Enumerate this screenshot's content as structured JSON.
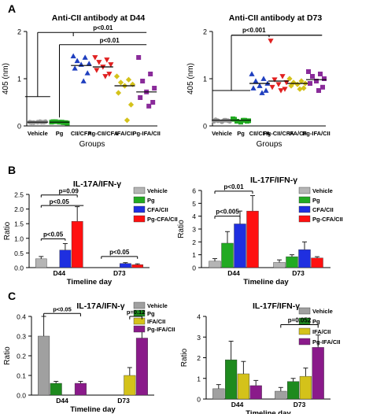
{
  "panel_labels": [
    "A",
    "B",
    "C"
  ],
  "chart_data": [
    {
      "type": "scatter",
      "panel": "A",
      "title": "Anti-CII antibody at D44",
      "ylabel": "405 (nm)",
      "xlabel": "Groups",
      "ylim": [
        0,
        2
      ],
      "yticks": [
        "0",
        "1",
        "2"
      ],
      "categories": [
        "Vehicle",
        "Pg",
        "CII/CFA",
        "Pg-CII/CFA",
        "IFA/CII",
        "Pg-IFA/CII"
      ],
      "colors": [
        "#999999",
        "#22aa22",
        "#1f3fbf",
        "#e02020",
        "#d4c21a",
        "#8a2b9a"
      ],
      "markers": [
        "circle",
        "square",
        "triangle",
        "triangle-down",
        "diamond",
        "square"
      ],
      "points": [
        [
          0.08,
          0.08,
          0.07,
          0.09,
          0.08,
          0.07,
          0.08,
          0.09
        ],
        [
          0.08,
          0.07,
          0.09,
          0.06,
          0.08,
          0.09,
          0.07,
          0.08
        ],
        [
          1.48,
          1.45,
          1.38,
          1.32,
          1.3,
          1.22,
          1.12,
          0.95
        ],
        [
          1.45,
          1.4,
          1.35,
          1.3,
          1.25,
          1.18,
          1.1,
          1.05
        ],
        [
          1.05,
          0.98,
          0.92,
          0.88,
          0.85,
          0.7,
          0.45,
          0.12
        ],
        [
          1.45,
          1.1,
          0.95,
          0.8,
          0.72,
          0.6,
          0.5,
          0.42
        ]
      ],
      "medians": [
        0.08,
        0.08,
        1.28,
        1.25,
        0.85,
        0.72
      ],
      "annotations": [
        "p<0.01",
        "p<0.01"
      ]
    },
    {
      "type": "scatter",
      "panel": "A",
      "title": "Anti-CII antibody at D73",
      "ylabel": "405 (nm)",
      "xlabel": "Groups",
      "ylim": [
        0,
        2
      ],
      "yticks": [
        "0",
        "1",
        "2"
      ],
      "categories": [
        "Vehicle",
        "Pg",
        "CII/CFA",
        "Pg-CII/CFA",
        "IFA/CII",
        "Pg-IFA/CII"
      ],
      "colors": [
        "#999999",
        "#22aa22",
        "#1f3fbf",
        "#e02020",
        "#d4c21a",
        "#8a2b9a"
      ],
      "markers": [
        "circle",
        "square",
        "triangle",
        "triangle-down",
        "diamond",
        "square"
      ],
      "points": [
        [
          0.1,
          0.12,
          0.11,
          0.1,
          0.09,
          0.13,
          0.11,
          0.12
        ],
        [
          0.15,
          0.12,
          0.1,
          0.11,
          0.08,
          0.14,
          0.1,
          0.12
        ],
        [
          1.1,
          1.0,
          0.95,
          0.9,
          0.85,
          0.8,
          0.75,
          0.7
        ],
        [
          1.8,
          1.05,
          0.98,
          0.92,
          0.88,
          0.82,
          0.78,
          0.75
        ],
        [
          1.0,
          0.95,
          0.92,
          0.9,
          0.88,
          0.85,
          0.8,
          0.78
        ],
        [
          1.15,
          1.1,
          1.05,
          1.0,
          0.95,
          0.9,
          0.82,
          0.75
        ]
      ],
      "medians": [
        0.12,
        0.12,
        0.9,
        0.95,
        0.9,
        0.98
      ],
      "annotations": [
        "p<0.001"
      ]
    },
    {
      "type": "bar",
      "panel": "B",
      "title": "IL-17A/IFN-γ",
      "ylabel": "Ratio",
      "xlabel": "Timeline day",
      "ylim": [
        0,
        2.5
      ],
      "yticks": [
        "0.0",
        "0.5",
        "1.0",
        "1.5",
        "2.0",
        "2.5"
      ],
      "categories": [
        "D44",
        "D73"
      ],
      "series": [
        {
          "name": "Vehicle",
          "color": "#b5b5b5",
          "values": [
            0.3,
            0.0
          ],
          "errors": [
            0.08,
            0.0
          ]
        },
        {
          "name": "Pg",
          "color": "#22aa22",
          "values": [
            0.0,
            0.0
          ],
          "errors": [
            0.0,
            0.0
          ]
        },
        {
          "name": "CFA/CII",
          "color": "#1f2fe0",
          "values": [
            0.6,
            0.14
          ],
          "errors": [
            0.22,
            0.03
          ]
        },
        {
          "name": "Pg-CFA/CII",
          "color": "#ff1010",
          "values": [
            1.58,
            0.1
          ],
          "errors": [
            0.5,
            0.03
          ]
        }
      ],
      "annotations": [
        "p=0.09",
        "p<0.05",
        "p<0.05",
        "p<0.05"
      ],
      "legend": "top-right"
    },
    {
      "type": "bar",
      "panel": "B",
      "title": "IL-17F/IFN-γ",
      "ylabel": "Ratio",
      "xlabel": "Timeline day",
      "ylim": [
        0,
        6
      ],
      "yticks": [
        "0",
        "1",
        "2",
        "3",
        "4",
        "5",
        "6"
      ],
      "categories": [
        "D44",
        "D73"
      ],
      "series": [
        {
          "name": "Vehicle",
          "color": "#b5b5b5",
          "values": [
            0.5,
            0.4
          ],
          "errors": [
            0.2,
            0.2
          ]
        },
        {
          "name": "Pg",
          "color": "#22aa22",
          "values": [
            1.9,
            0.85
          ],
          "errors": [
            0.9,
            0.15
          ]
        },
        {
          "name": "CFA/CII",
          "color": "#1f2fe0",
          "values": [
            3.4,
            1.4
          ],
          "errors": [
            1.0,
            0.6
          ]
        },
        {
          "name": "Pg-CFA/CII",
          "color": "#ff1010",
          "values": [
            4.4,
            0.75
          ],
          "errors": [
            1.2,
            0.1
          ]
        }
      ],
      "annotations": [
        "p<0.01",
        "p<0.005"
      ],
      "legend": "top-right"
    },
    {
      "type": "bar",
      "panel": "C",
      "title": "IL-17A/IFN-γ",
      "ylabel": "Ratio",
      "xlabel": "Timeline day",
      "ylim": [
        0,
        0.4
      ],
      "yticks": [
        "0.0",
        "0.1",
        "0.2",
        "0.3",
        "0.4"
      ],
      "categories": [
        "D44",
        "D73"
      ],
      "series": [
        {
          "name": "Vehicle",
          "color": "#a0a0a0",
          "values": [
            0.3,
            0.0
          ],
          "errors": [
            0.1,
            0.0
          ]
        },
        {
          "name": "Pg",
          "color": "#1e8a1e",
          "values": [
            0.06,
            0.0
          ],
          "errors": [
            0.01,
            0.0
          ]
        },
        {
          "name": "IFA/CII",
          "color": "#d4c21a",
          "values": [
            0.0,
            0.1
          ],
          "errors": [
            0.0,
            0.04
          ]
        },
        {
          "name": "Pg-IFA/CII",
          "color": "#8a1a8a",
          "values": [
            0.06,
            0.29
          ],
          "errors": [
            0.01,
            0.06
          ]
        }
      ],
      "annotations": [
        "p<0.05",
        "p=0.12"
      ],
      "legend": "top-right"
    },
    {
      "type": "bar",
      "panel": "C",
      "title": "IL-17F/IFN-γ",
      "ylabel": "Ratio",
      "xlabel": "Timeline day",
      "ylim": [
        0,
        4
      ],
      "yticks": [
        "0",
        "1",
        "2",
        "3",
        "4"
      ],
      "categories": [
        "D44",
        "D73"
      ],
      "series": [
        {
          "name": "Vehicle",
          "color": "#a0a0a0",
          "values": [
            0.5,
            0.38
          ],
          "errors": [
            0.2,
            0.18
          ]
        },
        {
          "name": "Pg",
          "color": "#1e8a1e",
          "values": [
            1.9,
            0.85
          ],
          "errors": [
            0.9,
            0.15
          ]
        },
        {
          "name": "IFA/CII",
          "color": "#d4c21a",
          "values": [
            1.22,
            1.1
          ],
          "errors": [
            0.6,
            0.4
          ]
        },
        {
          "name": "Pg-IFA/CII",
          "color": "#8a1a8a",
          "values": [
            0.65,
            2.5
          ],
          "errors": [
            0.25,
            0.6
          ]
        }
      ],
      "annotations": [
        "p=0.052"
      ],
      "legend": "top-right"
    }
  ]
}
